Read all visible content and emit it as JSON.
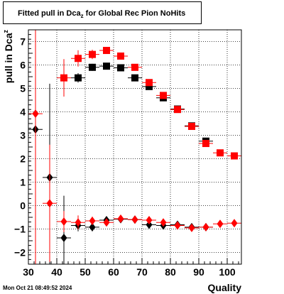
{
  "title": {
    "main": "Fitted pull in Dca",
    "sub": "z",
    "rest": " for Global Rec Pion NoHits"
  },
  "footer": "Mon Oct 21 08:49:52 2024",
  "chart_data": {
    "type": "scatter",
    "xlabel": "Quality",
    "ylabel_main": "pull in Dca",
    "ylabel_sub": "z",
    "xlim": [
      30,
      105
    ],
    "ylim": [
      -2.5,
      7.5
    ],
    "x_ticks": [
      30,
      40,
      50,
      60,
      70,
      80,
      90,
      100
    ],
    "y_ticks": [
      -2,
      -1,
      0,
      1,
      2,
      3,
      4,
      5,
      6,
      7
    ],
    "grid": true,
    "series": [
      {
        "marker": "square",
        "color": "#000000",
        "points": [
          {
            "x": 47.5,
            "y": 5.45,
            "xerr": 2.5,
            "yerr": 0.2
          },
          {
            "x": 52.5,
            "y": 5.9,
            "xerr": 2.5,
            "yerr": 0.15
          },
          {
            "x": 57.5,
            "y": 5.95,
            "xerr": 2.5,
            "yerr": 0.12
          },
          {
            "x": 62.5,
            "y": 5.88,
            "xerr": 2.5,
            "yerr": 0.1
          },
          {
            "x": 67.5,
            "y": 5.45,
            "xerr": 2.5,
            "yerr": 0.08
          },
          {
            "x": 72.5,
            "y": 5.08,
            "xerr": 2.5,
            "yerr": 0.08
          },
          {
            "x": 77.5,
            "y": 4.6,
            "xerr": 2.5,
            "yerr": 0.07
          },
          {
            "x": 82.5,
            "y": 4.12,
            "xerr": 2.5,
            "yerr": 0.06
          },
          {
            "x": 87.5,
            "y": 3.4,
            "xerr": 2.5,
            "yerr": 0.05
          },
          {
            "x": 92.5,
            "y": 2.75,
            "xerr": 2.5,
            "yerr": 0.05
          }
        ]
      },
      {
        "marker": "square",
        "color": "#ff0000",
        "points": [
          {
            "x": 42.5,
            "y": 5.45,
            "xerr": 2.5,
            "yerr": 0.8
          },
          {
            "x": 47.5,
            "y": 6.28,
            "xerr": 2.5,
            "yerr": 0.35
          },
          {
            "x": 52.5,
            "y": 6.45,
            "xerr": 2.5,
            "yerr": 0.2
          },
          {
            "x": 57.5,
            "y": 6.62,
            "xerr": 2.5,
            "yerr": 0.15
          },
          {
            "x": 62.5,
            "y": 6.38,
            "xerr": 2.5,
            "yerr": 0.12
          },
          {
            "x": 67.5,
            "y": 5.9,
            "xerr": 2.5,
            "yerr": 0.1
          },
          {
            "x": 72.5,
            "y": 5.25,
            "xerr": 2.5,
            "yerr": 0.08
          },
          {
            "x": 77.5,
            "y": 4.7,
            "xerr": 2.5,
            "yerr": 0.07
          },
          {
            "x": 82.5,
            "y": 4.1,
            "xerr": 2.5,
            "yerr": 0.06
          },
          {
            "x": 87.5,
            "y": 3.38,
            "xerr": 2.5,
            "yerr": 0.05
          },
          {
            "x": 92.5,
            "y": 2.65,
            "xerr": 2.5,
            "yerr": 0.05
          },
          {
            "x": 97.5,
            "y": 2.25,
            "xerr": 2.5,
            "yerr": 0.04
          },
          {
            "x": 102.5,
            "y": 2.12,
            "xerr": 2.5,
            "yerr": 0.04
          }
        ]
      },
      {
        "marker": "diamond",
        "color": "#000000",
        "points": [
          {
            "x": 32.5,
            "y": 3.25,
            "xerr": 2.5,
            "yerr": 0.0
          },
          {
            "x": 37.5,
            "y": 1.2,
            "xerr": 2.5,
            "yerr": 4.0
          },
          {
            "x": 42.5,
            "y": -1.38,
            "xerr": 2.5,
            "yerr": 1.8
          },
          {
            "x": 47.5,
            "y": -0.85,
            "xerr": 2.5,
            "yerr": 0.25
          },
          {
            "x": 52.5,
            "y": -0.92,
            "xerr": 2.5,
            "yerr": 0.18
          },
          {
            "x": 57.5,
            "y": -0.62,
            "xerr": 2.5,
            "yerr": 0.12
          },
          {
            "x": 62.5,
            "y": -0.58,
            "xerr": 2.5,
            "yerr": 0.1
          },
          {
            "x": 67.5,
            "y": -0.6,
            "xerr": 2.5,
            "yerr": 0.08
          },
          {
            "x": 72.5,
            "y": -0.82,
            "xerr": 2.5,
            "yerr": 0.07
          },
          {
            "x": 77.5,
            "y": -0.85,
            "xerr": 2.5,
            "yerr": 0.06
          },
          {
            "x": 82.5,
            "y": -0.82,
            "xerr": 2.5,
            "yerr": 0.06
          },
          {
            "x": 87.5,
            "y": -0.92,
            "xerr": 2.5,
            "yerr": 0.05
          },
          {
            "x": 92.5,
            "y": -0.92,
            "xerr": 2.5,
            "yerr": 0.05
          }
        ]
      },
      {
        "marker": "diamond",
        "color": "#ff0000",
        "points": [
          {
            "x": 32.5,
            "y": 3.92,
            "xerr": 2.5,
            "yerr": 7.0
          },
          {
            "x": 37.5,
            "y": 0.1,
            "xerr": 2.5,
            "yerr": 2.5
          },
          {
            "x": 42.5,
            "y": -0.68,
            "xerr": 2.5,
            "yerr": 0.45
          },
          {
            "x": 47.5,
            "y": -0.72,
            "xerr": 2.5,
            "yerr": 0.3
          },
          {
            "x": 52.5,
            "y": -0.65,
            "xerr": 2.5,
            "yerr": 0.18
          },
          {
            "x": 57.5,
            "y": -0.72,
            "xerr": 2.5,
            "yerr": 0.12
          },
          {
            "x": 62.5,
            "y": -0.56,
            "xerr": 2.5,
            "yerr": 0.1
          },
          {
            "x": 67.5,
            "y": -0.6,
            "xerr": 2.5,
            "yerr": 0.08
          },
          {
            "x": 72.5,
            "y": -0.62,
            "xerr": 2.5,
            "yerr": 0.07
          },
          {
            "x": 77.5,
            "y": -0.72,
            "xerr": 2.5,
            "yerr": 0.06
          },
          {
            "x": 82.5,
            "y": -0.85,
            "xerr": 2.5,
            "yerr": 0.06
          },
          {
            "x": 87.5,
            "y": -0.95,
            "xerr": 2.5,
            "yerr": 0.05
          },
          {
            "x": 92.5,
            "y": -0.92,
            "xerr": 2.5,
            "yerr": 0.05
          },
          {
            "x": 97.5,
            "y": -0.78,
            "xerr": 2.5,
            "yerr": 0.04
          },
          {
            "x": 102.5,
            "y": -0.75,
            "xerr": 2.5,
            "yerr": 0.04
          }
        ]
      }
    ]
  }
}
